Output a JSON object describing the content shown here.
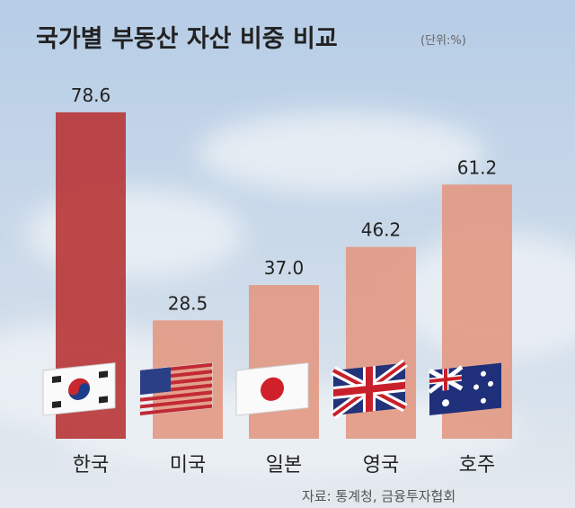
{
  "chart_data": {
    "type": "bar",
    "title": "국가별 부동산 자산 비중 비교",
    "unit_note": "(단위:%)",
    "categories": [
      "한국",
      "미국",
      "일본",
      "영국",
      "호주"
    ],
    "values": [
      78.6,
      28.5,
      37.0,
      46.2,
      61.2
    ],
    "value_labels": [
      "78.6",
      "28.5",
      "37.0",
      "46.2",
      "61.2"
    ],
    "flag_icons": [
      "korea-flag-icon",
      "usa-flag-icon",
      "japan-flag-icon",
      "uk-flag-icon",
      "australia-flag-icon"
    ],
    "ylim": [
      0,
      78.6
    ],
    "grid": false,
    "source": "자료: 통계청, 금융투자협회",
    "colors": {
      "highlight": "#b8383a",
      "bar": "#e29a84",
      "text": "#222222",
      "background_top": "#b9cfe6",
      "background_bottom": "#dfe7ee"
    }
  }
}
